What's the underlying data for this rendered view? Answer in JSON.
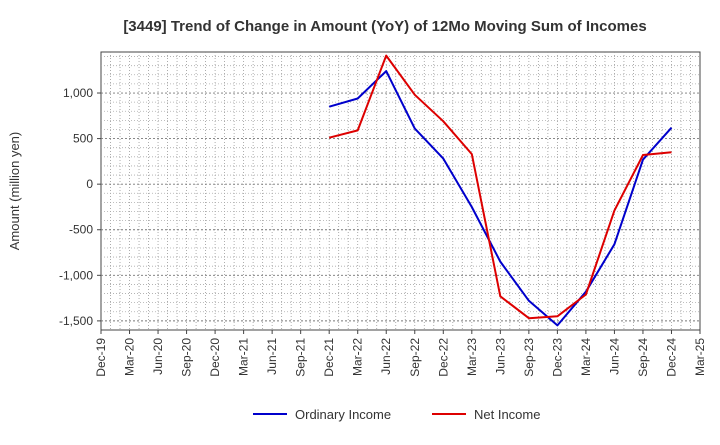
{
  "chart_data": {
    "type": "line",
    "title": "[3449]  Trend of Change in Amount (YoY) of 12Mo Moving Sum of Incomes",
    "xlabel": "",
    "ylabel": "Amount (million yen)",
    "ylim": [
      -1600,
      1450
    ],
    "yticks": [
      1000,
      500,
      0,
      -500,
      -1000,
      -1500
    ],
    "ytick_labels": [
      "1,000",
      "500",
      "0",
      "-500",
      "-1,000",
      "-1,500"
    ],
    "categories": [
      "Dec-19",
      "Mar-20",
      "Jun-20",
      "Sep-20",
      "Dec-20",
      "Mar-21",
      "Jun-21",
      "Sep-21",
      "Dec-21",
      "Mar-22",
      "Jun-22",
      "Sep-22",
      "Dec-22",
      "Mar-23",
      "Jun-23",
      "Sep-23",
      "Dec-23",
      "Mar-24",
      "Jun-24",
      "Sep-24",
      "Dec-24",
      "Mar-25"
    ],
    "grid": true,
    "legend_position": "bottom",
    "series": [
      {
        "name": "Ordinary Income",
        "color": "#0000cc",
        "values": [
          null,
          null,
          null,
          null,
          null,
          null,
          null,
          null,
          850,
          940,
          1240,
          610,
          280,
          -250,
          -850,
          -1280,
          -1550,
          -1180,
          -660,
          270,
          620,
          null
        ]
      },
      {
        "name": "Net Income",
        "color": "#dd0000",
        "values": [
          null,
          null,
          null,
          null,
          null,
          null,
          null,
          null,
          510,
          590,
          1410,
          980,
          690,
          330,
          -1230,
          -1470,
          -1450,
          -1210,
          -290,
          320,
          350,
          null
        ]
      }
    ]
  }
}
